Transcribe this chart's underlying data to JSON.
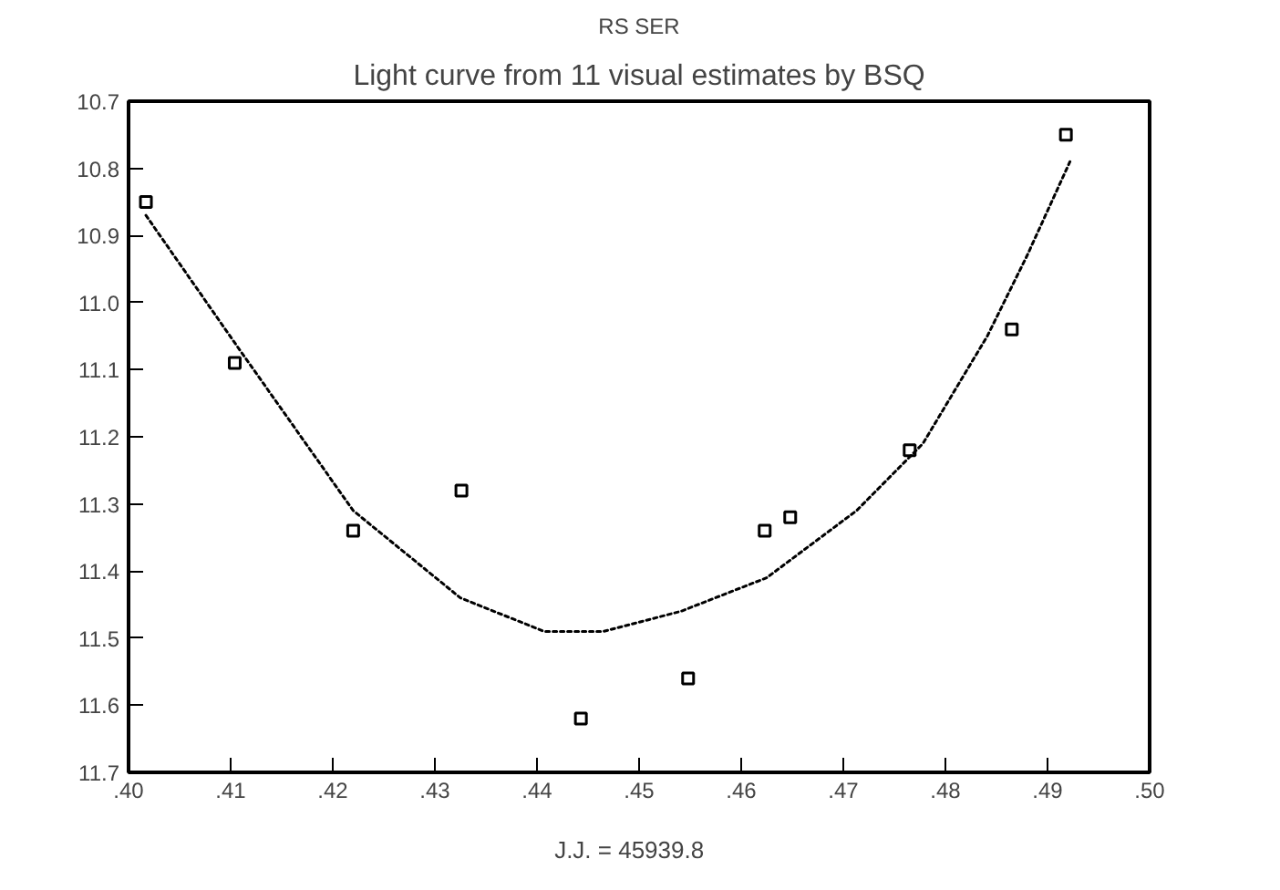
{
  "chart_data": {
    "type": "scatter",
    "title": "RS SER",
    "subtitle": "Light curve from 11 visual estimates by BSQ",
    "xlabel": "J.J. =    45939.8",
    "xlim": [
      0.4,
      0.5
    ],
    "ylim": [
      11.7,
      10.7
    ],
    "xticks": [
      {
        "value": 0.4,
        "label": ".40"
      },
      {
        "value": 0.41,
        "label": ".41"
      },
      {
        "value": 0.42,
        "label": ".42"
      },
      {
        "value": 0.43,
        "label": ".43"
      },
      {
        "value": 0.44,
        "label": ".44"
      },
      {
        "value": 0.45,
        "label": ".45"
      },
      {
        "value": 0.46,
        "label": ".46"
      },
      {
        "value": 0.47,
        "label": ".47"
      },
      {
        "value": 0.48,
        "label": ".48"
      },
      {
        "value": 0.49,
        "label": ".49"
      },
      {
        "value": 0.5,
        "label": ".50"
      }
    ],
    "yticks": [
      {
        "value": 10.7,
        "label": "10.7"
      },
      {
        "value": 10.8,
        "label": "10.8"
      },
      {
        "value": 10.9,
        "label": "10.9"
      },
      {
        "value": 11.0,
        "label": "11.0"
      },
      {
        "value": 11.1,
        "label": "11.1"
      },
      {
        "value": 11.2,
        "label": "11.2"
      },
      {
        "value": 11.3,
        "label": "11.3"
      },
      {
        "value": 11.4,
        "label": "11.4"
      },
      {
        "value": 11.5,
        "label": "11.5"
      },
      {
        "value": 11.6,
        "label": "11.6"
      },
      {
        "value": 11.7,
        "label": "11.7"
      }
    ],
    "grid": false,
    "series": [
      {
        "color": "#000000",
        "marker": "square",
        "x": [
          0.4017,
          0.4104,
          0.422,
          0.4326,
          0.4443,
          0.4548,
          0.4623,
          0.4648,
          0.4765,
          0.4865,
          0.4918
        ],
        "values": [
          10.85,
          11.09,
          11.34,
          11.28,
          11.62,
          11.56,
          11.34,
          11.32,
          11.22,
          11.04,
          10.75
        ]
      },
      {
        "type": "line",
        "color": "#000000",
        "line_style": "dotted",
        "marker": "none",
        "x": [
          0.4017,
          0.4104,
          0.422,
          0.4325,
          0.4407,
          0.4465,
          0.4541,
          0.4625,
          0.4713,
          0.4778,
          0.4841,
          0.488,
          0.4922
        ],
        "values": [
          10.87,
          11.06,
          11.31,
          11.44,
          11.49,
          11.49,
          11.46,
          11.41,
          11.31,
          11.21,
          11.05,
          10.93,
          10.79
        ]
      }
    ]
  }
}
